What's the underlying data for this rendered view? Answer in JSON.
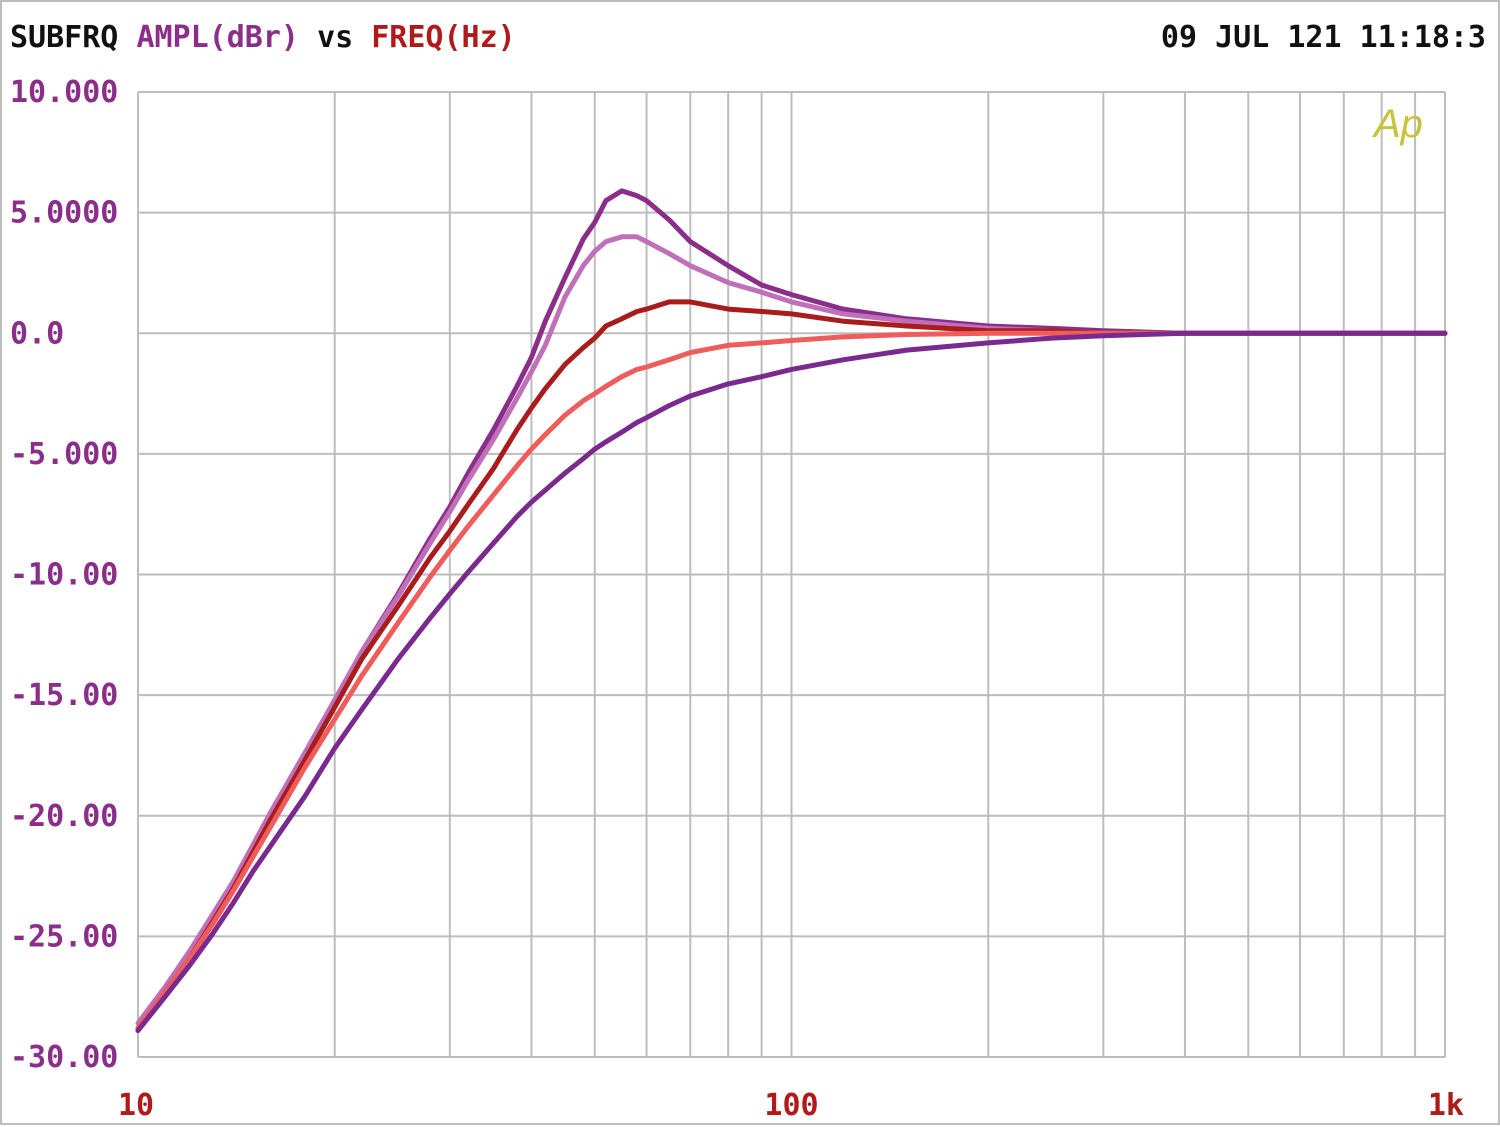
{
  "header": {
    "title": "SUBFRQ",
    "y_quantity": "AMPL(dBr)",
    "vs_label": "vs",
    "x_quantity": "FREQ(Hz)",
    "timestamp": "09 JUL 121 11:18:3"
  },
  "logo_text": "Ap",
  "colors": {
    "title": "#111111",
    "y_axis_text": "#8a2e8a",
    "x_axis_text": "#b01a1a",
    "grid": "#bdbdbd",
    "logo": "#c8c23a"
  },
  "chart_data": {
    "type": "line",
    "title": "SUBFRQ",
    "xlabel": "FREQ(Hz)",
    "ylabel": "AMPL(dBr)",
    "xscale": "log",
    "xlim": [
      10,
      1000
    ],
    "ylim": [
      -30,
      10
    ],
    "grid": true,
    "x_tick_labels": [
      {
        "value": 10,
        "label": "10"
      },
      {
        "value": 100,
        "label": "100"
      },
      {
        "value": 1000,
        "label": "1k"
      }
    ],
    "y_tick_labels": [
      {
        "value": 10,
        "label": "10.000"
      },
      {
        "value": 5,
        "label": "5.0000"
      },
      {
        "value": 0,
        "label": "0.0"
      },
      {
        "value": -5,
        "label": "-5.000"
      },
      {
        "value": -10,
        "label": "-10.00"
      },
      {
        "value": -15,
        "label": "-15.00"
      },
      {
        "value": -20,
        "label": "-20.00"
      },
      {
        "value": -25,
        "label": "-25.00"
      },
      {
        "value": -30,
        "label": "-30.00"
      }
    ],
    "series": [
      {
        "color": "#8a2e8a",
        "x": [
          10,
          11,
          12,
          13,
          14,
          15,
          16,
          18,
          20,
          22,
          25,
          28,
          30,
          32,
          35,
          38,
          40,
          42,
          45,
          48,
          50,
          52,
          55,
          58,
          60,
          65,
          70,
          80,
          90,
          100,
          120,
          150,
          200,
          250,
          300,
          400,
          500,
          700,
          1000
        ],
        "y": [
          -28.8,
          -27.3,
          -25.8,
          -24.2,
          -22.8,
          -21.3,
          -19.9,
          -17.5,
          -15.3,
          -13.2,
          -10.8,
          -8.5,
          -7.2,
          -5.8,
          -4.0,
          -2.2,
          -1.0,
          0.5,
          2.3,
          3.9,
          4.6,
          5.5,
          5.9,
          5.7,
          5.5,
          4.7,
          3.8,
          2.8,
          2.0,
          1.6,
          1.0,
          0.6,
          0.3,
          0.2,
          0.1,
          0.0,
          0.0,
          0.0,
          0.0
        ]
      },
      {
        "color": "#c070b8",
        "x": [
          10,
          11,
          12,
          13,
          14,
          15,
          16,
          18,
          20,
          22,
          25,
          28,
          30,
          32,
          35,
          38,
          40,
          42,
          45,
          48,
          50,
          52,
          55,
          58,
          60,
          65,
          70,
          80,
          90,
          100,
          120,
          150,
          200,
          250,
          300,
          400,
          500,
          700,
          1000
        ],
        "y": [
          -28.6,
          -27.1,
          -25.6,
          -24.1,
          -22.7,
          -21.2,
          -19.8,
          -17.4,
          -15.2,
          -13.2,
          -10.9,
          -8.7,
          -7.4,
          -6.1,
          -4.4,
          -2.7,
          -1.6,
          -0.5,
          1.5,
          2.8,
          3.4,
          3.8,
          4.0,
          4.0,
          3.8,
          3.3,
          2.8,
          2.1,
          1.7,
          1.3,
          0.8,
          0.5,
          0.2,
          0.1,
          0.0,
          0.0,
          0.0,
          0.0,
          0.0
        ]
      },
      {
        "color": "#a81c1c",
        "x": [
          10,
          11,
          12,
          13,
          14,
          15,
          16,
          18,
          20,
          22,
          25,
          28,
          30,
          32,
          35,
          38,
          40,
          42,
          45,
          48,
          50,
          52,
          55,
          58,
          60,
          65,
          70,
          80,
          90,
          100,
          120,
          150,
          200,
          250,
          300,
          400,
          500,
          700,
          1000
        ],
        "y": [
          -28.9,
          -27.3,
          -25.9,
          -24.4,
          -23.0,
          -21.5,
          -20.1,
          -17.7,
          -15.5,
          -13.5,
          -11.3,
          -9.3,
          -8.2,
          -7.1,
          -5.6,
          -4.0,
          -3.1,
          -2.3,
          -1.3,
          -0.6,
          -0.2,
          0.3,
          0.6,
          0.9,
          1.0,
          1.3,
          1.3,
          1.0,
          0.9,
          0.8,
          0.5,
          0.3,
          0.1,
          0.1,
          0.0,
          0.0,
          0.0,
          0.0,
          0.0
        ]
      },
      {
        "color": "#ee5c5c",
        "x": [
          10,
          11,
          12,
          13,
          14,
          15,
          16,
          18,
          20,
          22,
          25,
          28,
          30,
          32,
          35,
          38,
          40,
          42,
          45,
          48,
          50,
          52,
          55,
          58,
          60,
          65,
          70,
          80,
          90,
          100,
          120,
          150,
          200,
          250,
          300,
          400,
          500,
          700,
          1000
        ],
        "y": [
          -28.8,
          -27.3,
          -25.9,
          -24.5,
          -23.1,
          -21.7,
          -20.4,
          -18.0,
          -16.0,
          -14.2,
          -12.0,
          -10.1,
          -9.0,
          -8.0,
          -6.7,
          -5.5,
          -4.8,
          -4.2,
          -3.4,
          -2.8,
          -2.5,
          -2.2,
          -1.8,
          -1.5,
          -1.4,
          -1.1,
          -0.8,
          -0.5,
          -0.4,
          -0.3,
          -0.15,
          -0.05,
          0.0,
          0.0,
          0.0,
          0.0,
          0.0,
          0.0,
          0.0
        ]
      },
      {
        "color": "#7a2a8e",
        "x": [
          10,
          11,
          12,
          13,
          14,
          15,
          16,
          18,
          20,
          22,
          25,
          28,
          30,
          32,
          35,
          38,
          40,
          42,
          45,
          48,
          50,
          52,
          55,
          58,
          60,
          65,
          70,
          80,
          90,
          100,
          120,
          150,
          200,
          250,
          300,
          400,
          500,
          700,
          1000
        ],
        "y": [
          -28.9,
          -27.5,
          -26.2,
          -24.9,
          -23.6,
          -22.3,
          -21.2,
          -19.2,
          -17.2,
          -15.6,
          -13.5,
          -11.8,
          -10.8,
          -9.9,
          -8.7,
          -7.6,
          -7.0,
          -6.5,
          -5.8,
          -5.2,
          -4.8,
          -4.5,
          -4.1,
          -3.7,
          -3.5,
          -3.0,
          -2.6,
          -2.1,
          -1.8,
          -1.5,
          -1.1,
          -0.7,
          -0.4,
          -0.2,
          -0.1,
          0.0,
          0.0,
          0.0,
          0.0
        ]
      }
    ]
  }
}
